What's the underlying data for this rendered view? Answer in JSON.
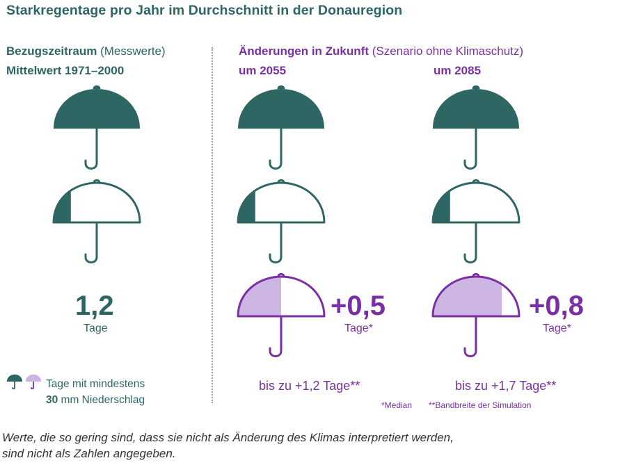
{
  "title": "Starkregentage pro Jahr im Durchschnitt in der Donauregion",
  "left_header": {
    "line1_bold": "Bezugszeitraum",
    "line1_light": " (Messwerte)",
    "line2": "Mittelwert 1971–2000"
  },
  "right_header": {
    "line1_bold": "Änderungen in Zukunft",
    "line1_light": " (Szenario ohne Klimaschutz)",
    "col1": "um 2055",
    "col2": "um 2085"
  },
  "legend": {
    "line1": "Tage mit mindestens",
    "line2_bold": "30",
    "line2_rest": " mm Niederschlag"
  },
  "footnotes": {
    "median": "*Median",
    "range": "**Bandbreite der Simulation"
  },
  "note": {
    "line1": "Werte, die so gering sind, dass sie nicht als Änderung des Klimas interpretiert werden,",
    "line2": "sind nicht als Zahlen angegeben."
  },
  "colors": {
    "green": "#2e6664",
    "purple": "#7b2fa4",
    "lavender": "#cdb5e3"
  },
  "chart_data": {
    "type": "pictogram",
    "unit_icon": "umbrella-icon",
    "series": [
      {
        "name": "Bezugszeitraum (Messwerte) Mittelwert 1971–2000",
        "value": 1.2,
        "value_label": "1,2",
        "unit_label": "Tage",
        "fill_color": "#2e6664"
      },
      {
        "name": "um 2055",
        "base_value": 1.2,
        "change": 0.5,
        "change_label": "+0,5",
        "unit_label": "Tage*",
        "range_label": "bis zu +1,2 Tage**",
        "fill_color": "#cdb5e3"
      },
      {
        "name": "um 2085",
        "base_value": 1.2,
        "change": 0.8,
        "change_label": "+0,8",
        "unit_label": "Tage*",
        "range_label": "bis zu +1,7 Tage**",
        "fill_color": "#cdb5e3"
      }
    ]
  }
}
